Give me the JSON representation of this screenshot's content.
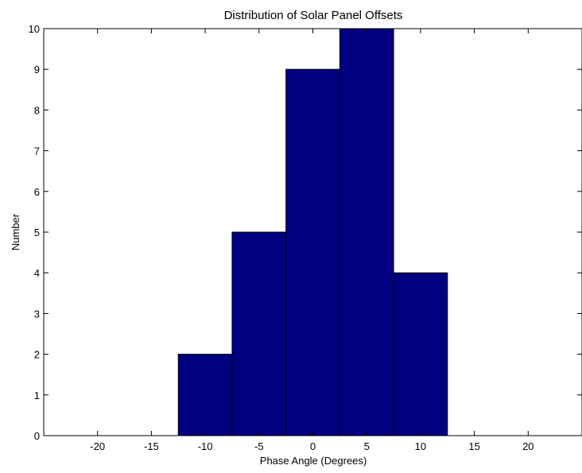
{
  "chart_data": {
    "type": "bar",
    "title": "Distribution of Solar Panel Offsets",
    "xlabel": "Phase Angle (Degrees)",
    "ylabel": "Number",
    "xlim": [
      -25,
      25
    ],
    "ylim": [
      0,
      10
    ],
    "xticks": [
      -20,
      -15,
      -10,
      -5,
      0,
      5,
      10,
      15,
      20
    ],
    "xtick_labels": [
      "-20",
      "-15",
      "-10",
      "-5",
      "0",
      "5",
      "10",
      "15",
      "20"
    ],
    "yticks": [
      0,
      1,
      2,
      3,
      4,
      5,
      6,
      7,
      8,
      9,
      10
    ],
    "ytick_labels": [
      "0",
      "1",
      "2",
      "3",
      "4",
      "5",
      "6",
      "7",
      "8",
      "9",
      "10"
    ],
    "bin_width": 5,
    "bins": [
      {
        "center": -10,
        "value": 2
      },
      {
        "center": -5,
        "value": 5
      },
      {
        "center": 0,
        "value": 9
      },
      {
        "center": 5,
        "value": 10
      },
      {
        "center": 10,
        "value": 4
      }
    ],
    "grid": false,
    "legend": "none",
    "bar_color": "#000080",
    "edge_color": "#000000"
  }
}
